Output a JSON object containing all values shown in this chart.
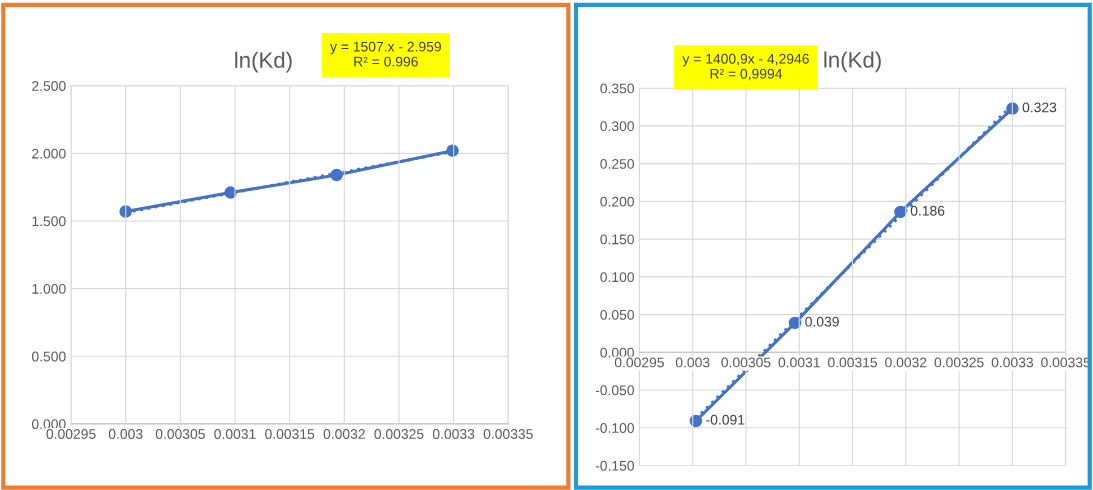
{
  "chart_data": [
    {
      "type": "line",
      "title": "ln(Kd)",
      "annotations": [
        "y = 1507.x - 2.959\nR² = 0.996"
      ],
      "series": [
        {
          "color": "#4472c4",
          "marker": "circle",
          "line_style": "solid",
          "x": [
            0.003,
            0.003096,
            0.003193,
            0.003299
          ],
          "values": [
            1.57,
            1.71,
            1.84,
            2.02
          ]
        },
        {
          "color": "#4472c4",
          "marker": "none",
          "line_style": "dotted",
          "x": [
            0.003,
            0.003299
          ],
          "values": [
            1.562,
            2.012
          ]
        }
      ],
      "xlim": [
        0.00295,
        0.00335
      ],
      "xticks": [
        0.00295,
        0.003,
        0.00305,
        0.0031,
        0.00315,
        0.0032,
        0.00325,
        0.0033,
        0.00335
      ],
      "ylim": [
        0,
        2.5
      ],
      "yticks": [
        {
          "value": 0,
          "label": "0.000"
        },
        {
          "value": 0.5,
          "label": "0.500"
        },
        {
          "value": 1,
          "label": "1.000"
        },
        {
          "value": 1.5,
          "label": "1.500"
        },
        {
          "value": 2,
          "label": "2.000"
        },
        {
          "value": 2.5,
          "label": "2.500"
        }
      ],
      "grid": true,
      "legend": false
    },
    {
      "type": "line",
      "title": "ln(Kd)",
      "annotations": [
        "y = 1400,9x - 4,2946\nR² = 0,9994"
      ],
      "series": [
        {
          "color": "#4472c4",
          "marker": "circle",
          "line_style": "solid",
          "x": [
            0.003003,
            0.003096,
            0.003195,
            0.0033
          ],
          "values": [
            -0.091,
            0.039,
            0.186,
            0.323
          ],
          "value_labels": [
            "-0.091",
            "0.039",
            "0.186",
            "0.323"
          ]
        },
        {
          "color": "#4472c4",
          "marker": "none",
          "line_style": "dotted",
          "x": [
            0.003003,
            0.0033
          ],
          "values": [
            -0.088,
            0.328
          ]
        }
      ],
      "xlim": [
        0.00295,
        0.00335
      ],
      "xticks": [
        0.00295,
        0.003,
        0.00305,
        0.0031,
        0.00315,
        0.0032,
        0.00325,
        0.0033,
        0.00335
      ],
      "ylim": [
        -0.15,
        0.35
      ],
      "yticks": [
        {
          "value": -0.15,
          "label": "-0.150"
        },
        {
          "value": -0.1,
          "label": "-0.100"
        },
        {
          "value": -0.05,
          "label": "-0.050"
        },
        {
          "value": 0,
          "label": "0.000"
        },
        {
          "value": 0.05,
          "label": "0.050"
        },
        {
          "value": 0.1,
          "label": "0.100"
        },
        {
          "value": 0.15,
          "label": "0.150"
        },
        {
          "value": 0.2,
          "label": "0.200"
        },
        {
          "value": 0.25,
          "label": "0.250"
        },
        {
          "value": 0.3,
          "label": "0.300"
        },
        {
          "value": 0.35,
          "label": "0.350"
        }
      ],
      "grid": true,
      "legend": false
    }
  ]
}
